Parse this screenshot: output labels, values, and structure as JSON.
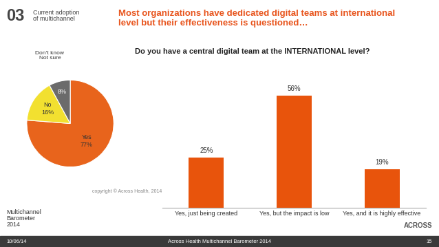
{
  "section": {
    "number": "03",
    "label": "Current adoption\nof multichannel"
  },
  "headline": "Most organizations have dedicated digital teams at international\nlevel but their effectiveness is questioned…",
  "question": "Do you have a central digital team at the INTERNATIONAL level?",
  "copyright": "copyright © Across Health, 2014",
  "logo": "Multichannel\nBarometer\n2014",
  "brand": "ACROSS",
  "footer": {
    "date": "10/06/14",
    "source": "Across Health Multichannel Barometer 2014",
    "page": "15"
  },
  "chart_data": [
    {
      "type": "pie",
      "categories": [
        "Yes",
        "No",
        "Don’t know\nNot sure"
      ],
      "values": [
        77,
        16,
        8
      ],
      "value_labels": [
        "77%",
        "16%",
        "8%"
      ],
      "colors": [
        "#e8641c",
        "#f2e030",
        "#6b6b6b"
      ],
      "data_labels": true
    },
    {
      "type": "bar",
      "categories": [
        "Yes, just being created",
        "Yes, but the impact is low",
        "Yes, and it is highly effective"
      ],
      "values": [
        25,
        56,
        19
      ],
      "value_labels": [
        "25%",
        "56%",
        "19%"
      ],
      "color": "#e8540c",
      "data_labels": true,
      "tick_labels": "x"
    }
  ]
}
